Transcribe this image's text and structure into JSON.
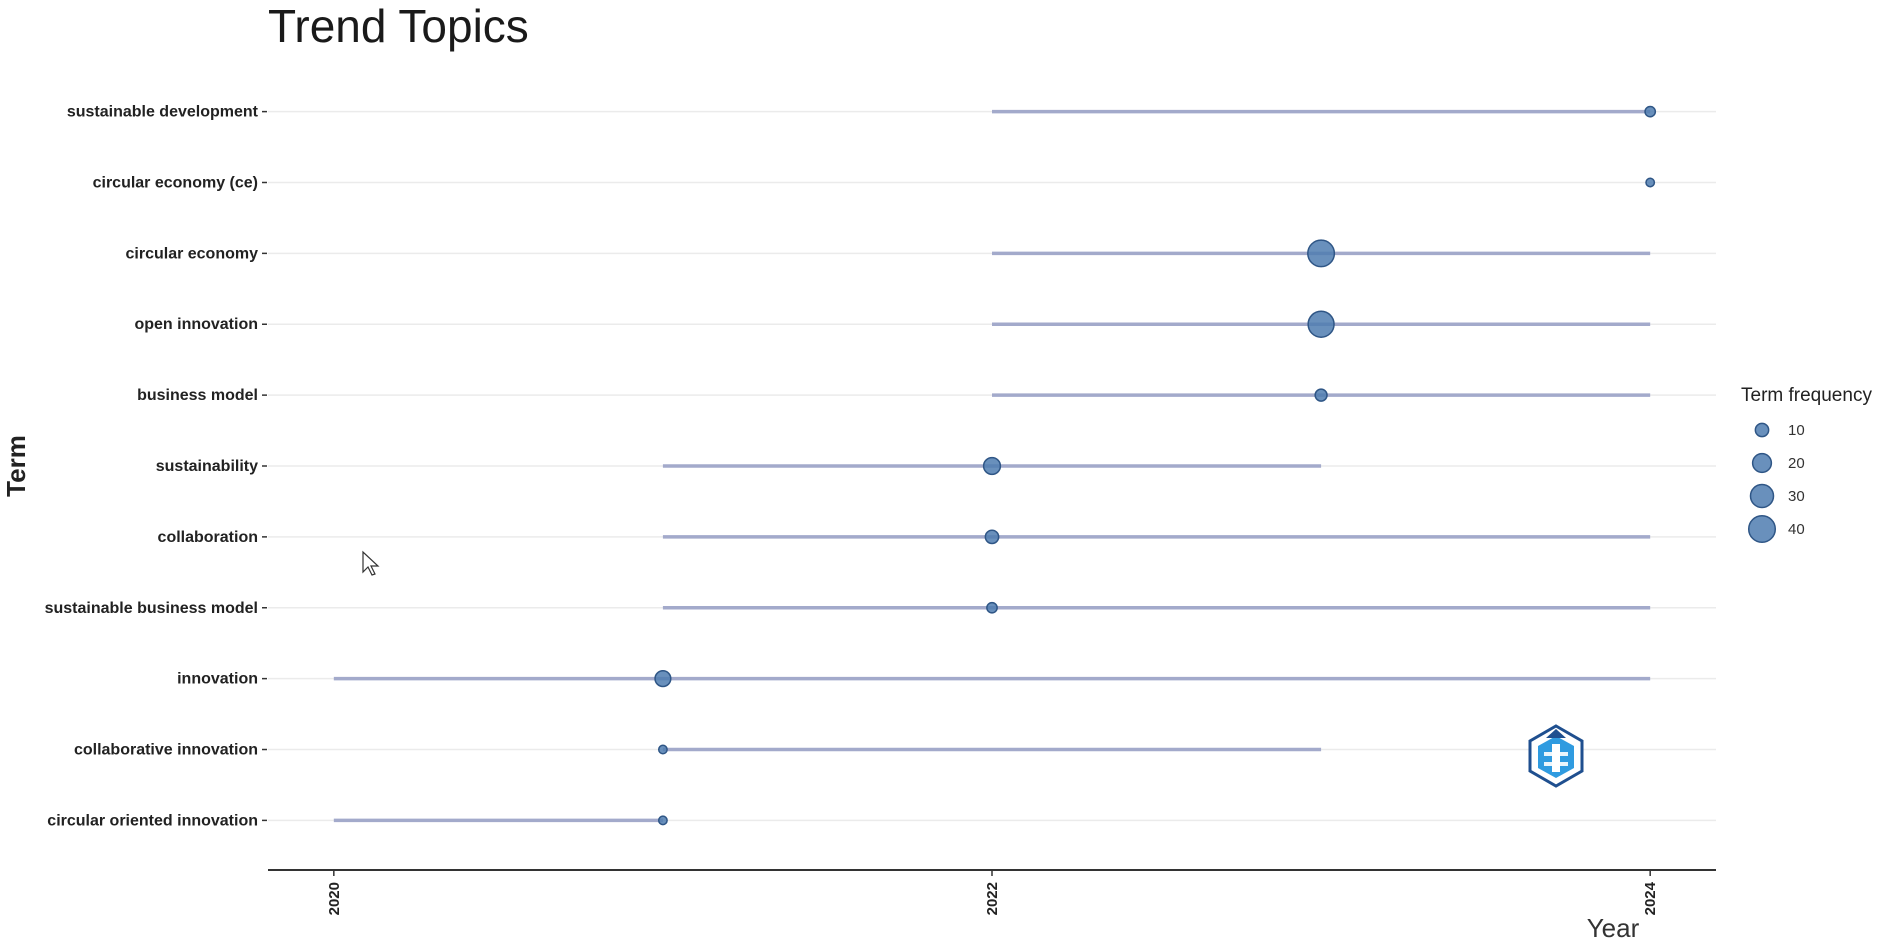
{
  "chart_data": {
    "type": "scatter",
    "title": "Trend Topics",
    "xlabel": "Year",
    "ylabel": "Term",
    "xlim": [
      2019.8,
      2024.2
    ],
    "x_ticks": [
      "2020",
      "2022",
      "2024"
    ],
    "grid": "horizontal",
    "terms": [
      {
        "term": "sustainable development",
        "start": 2022,
        "median": 2024,
        "end": 2024,
        "frequency": 6
      },
      {
        "term": "circular economy (ce)",
        "start": 2024,
        "median": 2024,
        "end": 2024,
        "frequency": 4
      },
      {
        "term": "circular economy",
        "start": 2022,
        "median": 2023,
        "end": 2024,
        "frequency": 40
      },
      {
        "term": "open innovation",
        "start": 2022,
        "median": 2023,
        "end": 2024,
        "frequency": 38
      },
      {
        "term": "business model",
        "start": 2022,
        "median": 2023,
        "end": 2024,
        "frequency": 8
      },
      {
        "term": "sustainability",
        "start": 2021,
        "median": 2022,
        "end": 2023,
        "frequency": 16
      },
      {
        "term": "collaboration",
        "start": 2021,
        "median": 2022,
        "end": 2024,
        "frequency": 10
      },
      {
        "term": "sustainable business model",
        "start": 2021,
        "median": 2022,
        "end": 2024,
        "frequency": 6
      },
      {
        "term": "innovation",
        "start": 2020,
        "median": 2021,
        "end": 2024,
        "frequency": 14
      },
      {
        "term": "collaborative innovation",
        "start": 2021,
        "median": 2021,
        "end": 2023,
        "frequency": 4
      },
      {
        "term": "circular oriented innovation",
        "start": 2020,
        "median": 2021,
        "end": 2021,
        "frequency": 4
      }
    ],
    "legend": {
      "title": "Term frequency",
      "position": "right",
      "entries": [
        {
          "label": "10",
          "value": 10
        },
        {
          "label": "20",
          "value": 20
        },
        {
          "label": "30",
          "value": 30
        },
        {
          "label": "40",
          "value": 40
        }
      ]
    },
    "colors": {
      "point_fill": "#4f7cb0",
      "point_stroke": "#2f5686",
      "segment": "#a3aacb",
      "grid": "#ebebeb",
      "axis": "#333333"
    }
  },
  "watermark": {
    "icon": "hexagon-logo-icon",
    "colors": [
      "#1f4f8f",
      "#2f9be0"
    ]
  }
}
